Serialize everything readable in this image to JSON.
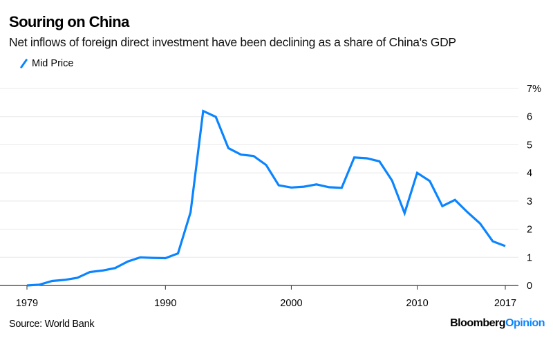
{
  "chart_data": {
    "type": "line",
    "title": "Souring on China",
    "subtitle": "Net inflows of foreign direct investment have been declining as a share of China's GDP",
    "xlabel": "",
    "ylabel": "",
    "legend": {
      "placement": "top-left",
      "entries": [
        "Mid Price"
      ]
    },
    "grid": true,
    "xlim": [
      1979,
      2017
    ],
    "ylim": [
      0,
      7
    ],
    "x_ticks": [
      1979,
      1990,
      2000,
      2010,
      2017
    ],
    "x_tick_labels": [
      "1979",
      "1990",
      "2000",
      "2010",
      "2017"
    ],
    "y_ticks": [
      0,
      1,
      2,
      3,
      4,
      5,
      6,
      7
    ],
    "y_tick_labels": [
      "0",
      "1",
      "2",
      "3",
      "4",
      "5",
      "6",
      "7%"
    ],
    "x": [
      1979,
      1980,
      1981,
      1982,
      1983,
      1984,
      1985,
      1986,
      1987,
      1988,
      1989,
      1990,
      1991,
      1992,
      1993,
      1994,
      1995,
      1996,
      1997,
      1998,
      1999,
      2000,
      2001,
      2002,
      2003,
      2004,
      2005,
      2006,
      2007,
      2008,
      2009,
      2010,
      2011,
      2012,
      2013,
      2014,
      2015,
      2016,
      2017
    ],
    "series": [
      {
        "name": "Mid Price",
        "color": "#0a84ff",
        "values": [
          0.0,
          0.03,
          0.16,
          0.2,
          0.27,
          0.48,
          0.53,
          0.62,
          0.85,
          1.0,
          0.98,
          0.97,
          1.14,
          2.6,
          6.2,
          5.99,
          4.88,
          4.65,
          4.6,
          4.28,
          3.56,
          3.48,
          3.51,
          3.59,
          3.49,
          3.47,
          4.55,
          4.52,
          4.41,
          3.73,
          2.57,
          4.0,
          3.71,
          2.82,
          3.04,
          2.6,
          2.2,
          1.57,
          1.4
        ]
      }
    ]
  },
  "footer": {
    "source": "Source: World Bank",
    "brand_part1": "Bloomberg",
    "brand_part2": "Opinion"
  },
  "colors": {
    "accent": "#0a84ff",
    "grid": "#e8e8e8",
    "axis": "#000000"
  }
}
